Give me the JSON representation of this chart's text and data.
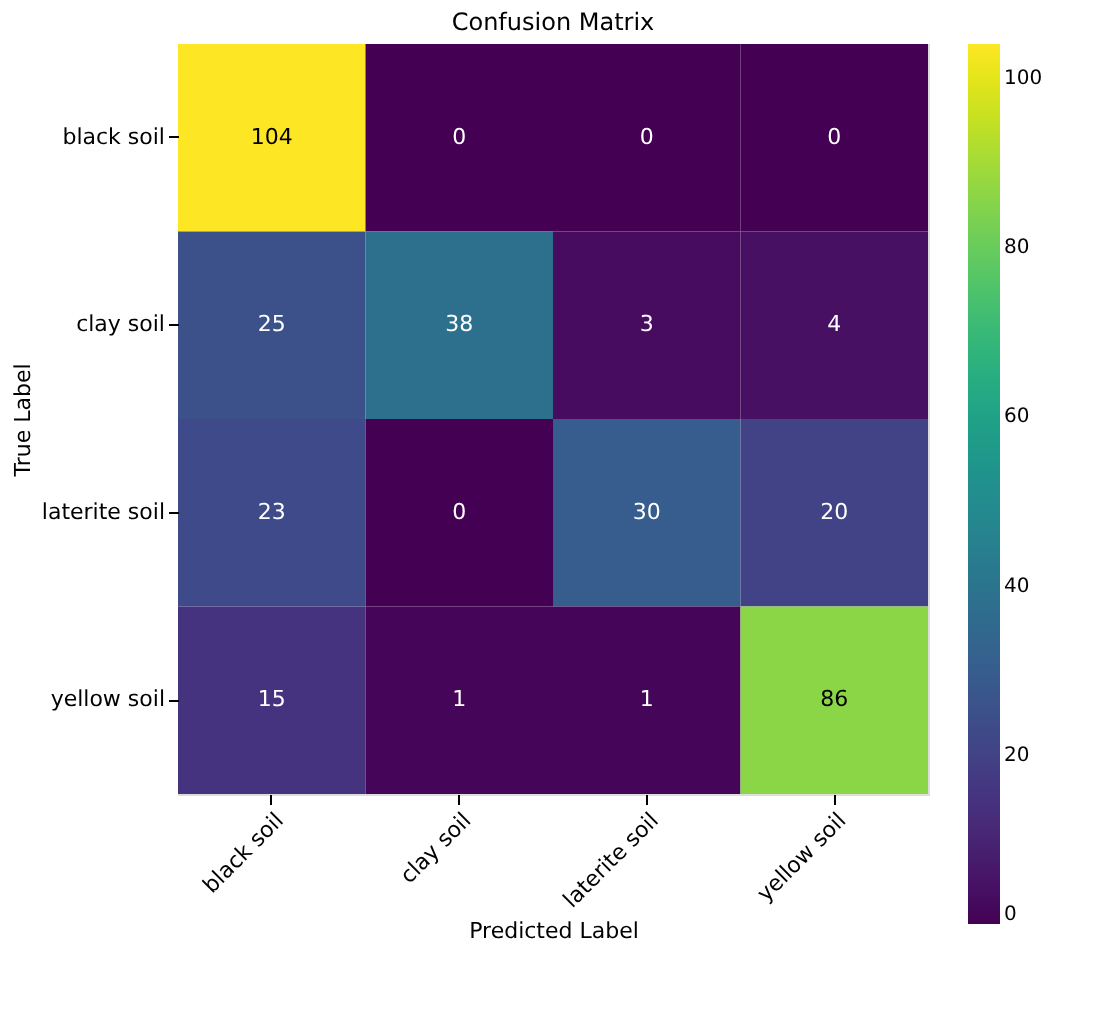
{
  "chart_data": {
    "type": "heatmap",
    "title": "Confusion Matrix",
    "xlabel": "Predicted Label",
    "ylabel": "True Label",
    "categories": [
      "black soil",
      "clay soil",
      "laterite soil",
      "yellow soil"
    ],
    "y_categories": [
      "black soil",
      "clay soil",
      "laterite soil",
      "yellow soil"
    ],
    "cells": [
      [
        104,
        0,
        0,
        0
      ],
      [
        25,
        38,
        3,
        4
      ],
      [
        23,
        0,
        30,
        20
      ],
      [
        15,
        1,
        1,
        86
      ]
    ],
    "data_labels": true,
    "clim": [
      0,
      104
    ],
    "cticks": [
      0,
      20,
      40,
      60,
      80,
      100
    ]
  }
}
